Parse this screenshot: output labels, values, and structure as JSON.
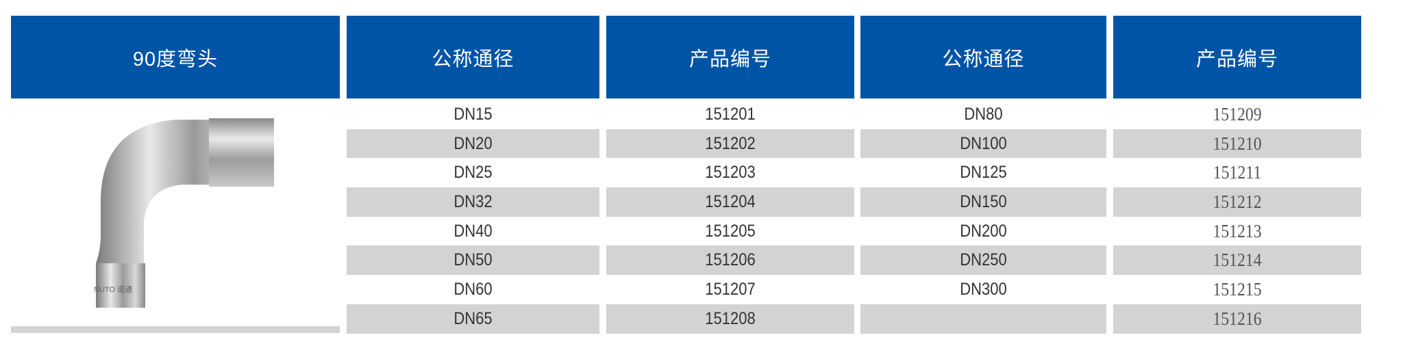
{
  "header": {
    "product": "90度弯头",
    "nominal_1": "公称通径",
    "code_1": "产品编号",
    "nominal_2": "公称通径",
    "code_2": "产品编号"
  },
  "image": {
    "watermark": "NUTO 诺通",
    "icon": "elbow-90-pipe-image"
  },
  "colors": {
    "header_bg": "#0054a6",
    "stripe": "#d3d3d3"
  },
  "left_table": {
    "nominal": [
      "DN15",
      "DN20",
      "DN25",
      "DN32",
      "DN40",
      "DN50",
      "DN60",
      "DN65"
    ],
    "codes": [
      "151201",
      "151202",
      "151203",
      "151204",
      "151205",
      "151206",
      "151207",
      "151208"
    ]
  },
  "right_table": {
    "nominal": [
      "DN80",
      "DN100",
      "DN125",
      "DN150",
      "DN200",
      "DN250",
      "DN300",
      ""
    ],
    "codes": [
      "151209",
      "151210",
      "151211",
      "151212",
      "151213",
      "151214",
      "151215",
      "151216"
    ]
  }
}
